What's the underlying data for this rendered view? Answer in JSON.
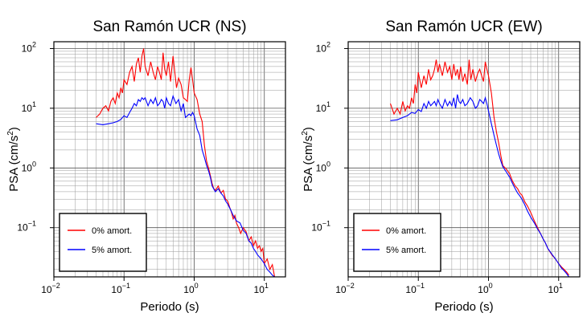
{
  "chart_data": [
    {
      "type": "line",
      "title": "San Ramón UCR (NS)",
      "xlabel": "Periodo (s)",
      "ylabel_main": "PSA (cm/s",
      "ylabel_sup": "2",
      "ylabel_tail": ")",
      "xscale": "log",
      "yscale": "log",
      "xlim": [
        0.01,
        20
      ],
      "ylim": [
        0.015,
        130
      ],
      "grid": true,
      "legend_placement": "bottom-left",
      "x_ticks": [
        {
          "base": "10",
          "exp": "−2"
        },
        {
          "base": "10",
          "exp": "−1"
        },
        {
          "base": "10",
          "exp": "0"
        },
        {
          "base": "10",
          "exp": "1"
        }
      ],
      "y_ticks": [
        {
          "base": "10",
          "exp": "−1"
        },
        {
          "base": "10",
          "exp": "0"
        },
        {
          "base": "10",
          "exp": "1"
        },
        {
          "base": "10",
          "exp": "2"
        }
      ],
      "series": [
        {
          "name": "0% amort.",
          "color": "#ff0000",
          "x": [
            0.04,
            0.045,
            0.05,
            0.055,
            0.06,
            0.065,
            0.07,
            0.075,
            0.08,
            0.085,
            0.09,
            0.095,
            0.1,
            0.11,
            0.12,
            0.13,
            0.14,
            0.15,
            0.16,
            0.17,
            0.18,
            0.19,
            0.2,
            0.22,
            0.24,
            0.26,
            0.28,
            0.3,
            0.32,
            0.34,
            0.36,
            0.38,
            0.4,
            0.43,
            0.46,
            0.5,
            0.53,
            0.56,
            0.6,
            0.65,
            0.7,
            0.75,
            0.8,
            0.85,
            0.9,
            0.95,
            1.0,
            1.1,
            1.2,
            1.3,
            1.4,
            1.5,
            1.6,
            1.7,
            1.8,
            1.9,
            2.0,
            2.2,
            2.4,
            2.6,
            2.8,
            3.0,
            3.2,
            3.4,
            3.6,
            3.8,
            4.0,
            4.3,
            4.6,
            5.0,
            5.5,
            6.0,
            6.5,
            7.0,
            7.5,
            8.0,
            8.5,
            9.0,
            9.5,
            10,
            11,
            12,
            13,
            14
          ],
          "y": [
            7,
            8,
            10,
            11,
            9,
            13,
            15,
            12,
            18,
            15,
            22,
            18,
            30,
            25,
            40,
            50,
            28,
            55,
            70,
            40,
            75,
            100,
            50,
            35,
            60,
            40,
            30,
            50,
            40,
            30,
            85,
            45,
            35,
            60,
            28,
            75,
            40,
            22,
            32,
            25,
            15,
            14,
            13,
            30,
            48,
            30,
            18,
            14,
            8,
            6,
            2.4,
            1.3,
            1.0,
            0.75,
            0.55,
            0.45,
            0.42,
            0.5,
            0.38,
            0.42,
            0.3,
            0.28,
            0.22,
            0.18,
            0.14,
            0.16,
            0.12,
            0.1,
            0.08,
            0.1,
            0.085,
            0.06,
            0.07,
            0.05,
            0.06,
            0.045,
            0.05,
            0.04,
            0.045,
            0.025,
            0.03,
            0.02,
            0.024,
            0.015
          ]
        },
        {
          "name": "5% amort.",
          "color": "#0000ff",
          "x": [
            0.04,
            0.05,
            0.06,
            0.07,
            0.08,
            0.09,
            0.1,
            0.11,
            0.12,
            0.13,
            0.14,
            0.15,
            0.16,
            0.17,
            0.18,
            0.19,
            0.2,
            0.22,
            0.24,
            0.26,
            0.28,
            0.3,
            0.32,
            0.34,
            0.36,
            0.38,
            0.4,
            0.43,
            0.46,
            0.5,
            0.55,
            0.6,
            0.65,
            0.7,
            0.75,
            0.8,
            0.85,
            0.9,
            0.95,
            1.0,
            1.1,
            1.2,
            1.3,
            1.4,
            1.5,
            1.6,
            1.7,
            1.8,
            2.0,
            2.2,
            2.4,
            2.6,
            2.8,
            3.0,
            3.3,
            3.6,
            4.0,
            4.5,
            5.0,
            5.5,
            6.0,
            6.5,
            7.0,
            7.5,
            8.0,
            9.0,
            10,
            11,
            12,
            13,
            14
          ],
          "y": [
            5.5,
            5.3,
            5.5,
            5.7,
            6,
            6.5,
            7.5,
            7,
            8.5,
            10,
            12,
            11,
            14,
            13,
            15,
            14,
            15,
            11,
            14,
            12,
            15,
            11,
            12,
            14,
            13,
            10,
            15,
            12,
            11,
            16,
            12,
            14,
            9,
            12,
            7,
            7.5,
            8,
            7.5,
            8.5,
            7.5,
            4.5,
            3.5,
            2,
            1.5,
            1.1,
            0.9,
            0.7,
            0.5,
            0.4,
            0.45,
            0.38,
            0.34,
            0.28,
            0.25,
            0.2,
            0.16,
            0.13,
            0.12,
            0.09,
            0.08,
            0.06,
            0.055,
            0.045,
            0.04,
            0.035,
            0.03,
            0.025,
            0.02,
            0.018,
            0.016,
            0.015
          ]
        }
      ]
    },
    {
      "type": "line",
      "title": "San Ramón UCR (EW)",
      "xlabel": "Periodo (s)",
      "ylabel_main": "PSA (cm/s",
      "ylabel_sup": "2",
      "ylabel_tail": ")",
      "xscale": "log",
      "yscale": "log",
      "xlim": [
        0.01,
        20
      ],
      "ylim": [
        0.015,
        130
      ],
      "grid": true,
      "legend_placement": "bottom-left",
      "x_ticks": [
        {
          "base": "10",
          "exp": "−2"
        },
        {
          "base": "10",
          "exp": "−1"
        },
        {
          "base": "10",
          "exp": "0"
        },
        {
          "base": "10",
          "exp": "1"
        }
      ],
      "y_ticks": [
        {
          "base": "10",
          "exp": "−1"
        },
        {
          "base": "10",
          "exp": "0"
        },
        {
          "base": "10",
          "exp": "1"
        },
        {
          "base": "10",
          "exp": "2"
        }
      ],
      "series": [
        {
          "name": "0% amort.",
          "color": "#ff0000",
          "x": [
            0.04,
            0.045,
            0.05,
            0.055,
            0.06,
            0.065,
            0.07,
            0.075,
            0.08,
            0.085,
            0.09,
            0.095,
            0.1,
            0.11,
            0.12,
            0.13,
            0.14,
            0.15,
            0.16,
            0.17,
            0.18,
            0.19,
            0.2,
            0.22,
            0.24,
            0.26,
            0.28,
            0.3,
            0.32,
            0.34,
            0.36,
            0.38,
            0.4,
            0.43,
            0.46,
            0.5,
            0.53,
            0.56,
            0.6,
            0.65,
            0.7,
            0.75,
            0.8,
            0.85,
            0.9,
            0.95,
            1.0,
            1.1,
            1.2,
            1.3,
            1.4,
            1.5,
            1.6,
            1.8,
            2.0,
            2.2,
            2.4,
            2.6,
            2.8,
            3.0,
            3.3,
            3.6,
            4.0,
            4.5,
            5.0,
            5.5,
            6.0,
            6.5,
            7.0,
            8.0,
            9.0,
            10,
            11,
            12,
            13,
            14
          ],
          "y": [
            12,
            8,
            10,
            8,
            13,
            9,
            11,
            10,
            15,
            12,
            25,
            18,
            40,
            22,
            35,
            25,
            45,
            30,
            35,
            45,
            65,
            40,
            55,
            35,
            60,
            40,
            50,
            30,
            55,
            35,
            45,
            30,
            50,
            28,
            38,
            25,
            65,
            30,
            45,
            28,
            38,
            45,
            35,
            28,
            60,
            45,
            35,
            18,
            7,
            4,
            2.6,
            1.6,
            1.1,
            0.95,
            0.8,
            0.6,
            0.5,
            0.45,
            0.38,
            0.35,
            0.27,
            0.23,
            0.18,
            0.13,
            0.1,
            0.08,
            0.065,
            0.055,
            0.045,
            0.035,
            0.03,
            0.025,
            0.022,
            0.02,
            0.018,
            0.016
          ]
        },
        {
          "name": "5% amort.",
          "color": "#0000ff",
          "x": [
            0.04,
            0.05,
            0.06,
            0.07,
            0.08,
            0.09,
            0.1,
            0.11,
            0.12,
            0.13,
            0.14,
            0.15,
            0.16,
            0.17,
            0.18,
            0.19,
            0.2,
            0.22,
            0.24,
            0.26,
            0.28,
            0.3,
            0.32,
            0.34,
            0.36,
            0.38,
            0.4,
            0.43,
            0.46,
            0.5,
            0.55,
            0.6,
            0.65,
            0.7,
            0.75,
            0.8,
            0.85,
            0.9,
            0.95,
            1.0,
            1.1,
            1.2,
            1.3,
            1.4,
            1.5,
            1.6,
            1.8,
            2.0,
            2.2,
            2.4,
            2.6,
            2.8,
            3.0,
            3.3,
            3.6,
            4.0,
            4.5,
            5.0,
            5.5,
            6.0,
            6.5,
            7.0,
            8.0,
            9.0,
            10,
            11,
            12,
            13,
            14
          ],
          "y": [
            6.2,
            6.4,
            7,
            7.5,
            8.5,
            8.2,
            9.5,
            8.8,
            12,
            10,
            13,
            11,
            12,
            13,
            11,
            14,
            12,
            10,
            14,
            11,
            13,
            11,
            15,
            10,
            17,
            13,
            12,
            14,
            11,
            12,
            15,
            13,
            10,
            11,
            14,
            13,
            12,
            15,
            12,
            9,
            5.5,
            3.5,
            2.4,
            1.7,
            1.3,
            1.05,
            0.85,
            0.7,
            0.55,
            0.45,
            0.38,
            0.34,
            0.3,
            0.24,
            0.19,
            0.15,
            0.12,
            0.095,
            0.08,
            0.065,
            0.055,
            0.045,
            0.036,
            0.03,
            0.025,
            0.021,
            0.019,
            0.017,
            0.015
          ]
        }
      ]
    }
  ]
}
